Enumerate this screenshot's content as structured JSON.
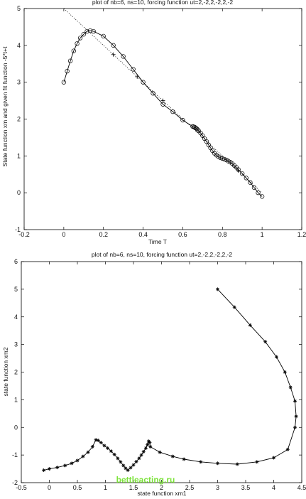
{
  "chart_data": [
    {
      "type": "line",
      "title": "plot of nb=6, ns=10, forcing function ut=2,-2,2,-2,2,-2",
      "xlabel": "Time T",
      "ylabel": "State function xm and given fit function -5*t+t",
      "xlim": [
        -0.2,
        1.2
      ],
      "ylim": [
        -1,
        5
      ],
      "x_ticks": [
        -0.2,
        0,
        0.2,
        0.4,
        0.6,
        0.8,
        1,
        1.2
      ],
      "x_tick_labels": [
        "-0.2",
        "0",
        "0.2",
        "0.4",
        "0.6",
        "0.8",
        "1",
        "1.2"
      ],
      "y_ticks": [
        -1,
        0,
        1,
        2,
        3,
        4,
        5
      ],
      "y_tick_labels": [
        "-1",
        "0",
        "1",
        "2",
        "3",
        "4",
        "5"
      ],
      "grid": false,
      "series": [
        {
          "style": "solid line with circle markers",
          "x": [
            0,
            0.017,
            0.033,
            0.05,
            0.067,
            0.083,
            0.1,
            0.117,
            0.133,
            0.15,
            0.2,
            0.25,
            0.3,
            0.35,
            0.4,
            0.45,
            0.5,
            0.55,
            0.6,
            0.65,
            0.655,
            0.66,
            0.665,
            0.67,
            0.675,
            0.68,
            0.69,
            0.7,
            0.71,
            0.72,
            0.73,
            0.74,
            0.75,
            0.76,
            0.77,
            0.78,
            0.79,
            0.8,
            0.81,
            0.82,
            0.83,
            0.84,
            0.85,
            0.86,
            0.87,
            0.88,
            0.9,
            0.92,
            0.94,
            0.96,
            0.98,
            1.0
          ],
          "y": [
            3.0,
            3.3,
            3.58,
            3.85,
            4.05,
            4.2,
            4.3,
            4.38,
            4.4,
            4.38,
            4.25,
            4.0,
            3.7,
            3.35,
            3.0,
            2.7,
            2.4,
            2.2,
            1.97,
            1.8,
            1.79,
            1.78,
            1.76,
            1.74,
            1.71,
            1.68,
            1.62,
            1.55,
            1.47,
            1.39,
            1.3,
            1.22,
            1.14,
            1.07,
            1.02,
            0.98,
            0.95,
            0.93,
            0.91,
            0.89,
            0.86,
            0.83,
            0.79,
            0.74,
            0.69,
            0.63,
            0.52,
            0.4,
            0.28,
            0.14,
            0.0,
            -0.1
          ]
        },
        {
          "style": "dotted line with plus markers",
          "x": [
            0,
            0.1,
            0.2,
            0.25,
            0.3,
            0.35,
            0.37,
            0.4,
            0.45,
            0.5,
            0.55,
            0.6,
            0.65,
            0.7,
            0.75,
            0.8,
            0.85,
            0.9,
            0.95,
            1.0
          ],
          "y": [
            5.0,
            4.5,
            4.0,
            3.75,
            3.5,
            3.25,
            3.15,
            3.0,
            2.75,
            2.5,
            2.25,
            2.0,
            1.75,
            1.5,
            1.25,
            1.0,
            0.75,
            0.5,
            0.25,
            0.0
          ],
          "plus_x": [
            0.25,
            0.37,
            0.5,
            0.88
          ],
          "plus_y": [
            3.75,
            3.15,
            2.5,
            0.6
          ]
        }
      ]
    },
    {
      "type": "line",
      "title": "plot of nb=6, ns=10, forcing function ut=2,-2,2,-2,2,-2",
      "xlabel": "state function xm1",
      "ylabel": "state function xm2",
      "xlim": [
        -0.5,
        4.5
      ],
      "ylim": [
        -2,
        6
      ],
      "x_ticks": [
        -0.5,
        0,
        0.5,
        1,
        1.5,
        2,
        2.5,
        3,
        3.5,
        4,
        4.5
      ],
      "x_tick_labels": [
        "-0.5",
        "0",
        "0.5",
        "1",
        "1.5",
        "2",
        "2.5",
        "3",
        "3.5",
        "4",
        "4.5"
      ],
      "y_ticks": [
        -2,
        -1,
        0,
        1,
        2,
        3,
        4,
        5,
        6
      ],
      "y_tick_labels": [
        "-2",
        "-1",
        "0",
        "1",
        "2",
        "3",
        "4",
        "5",
        "6"
      ],
      "grid": false,
      "series": [
        {
          "style": "solid line with star markers",
          "x": [
            3.0,
            3.3,
            3.58,
            3.85,
            4.05,
            4.2,
            4.3,
            4.38,
            4.4,
            4.38,
            4.25,
            4.0,
            3.7,
            3.35,
            3.0,
            2.7,
            2.4,
            2.2,
            1.97,
            1.8,
            1.79,
            1.77,
            1.75,
            1.72,
            1.68,
            1.64,
            1.6,
            1.55,
            1.5,
            1.45,
            1.4,
            1.36,
            1.32,
            1.27,
            1.22,
            1.16,
            1.1,
            1.04,
            0.98,
            0.92,
            0.87,
            0.83,
            0.77,
            0.69,
            0.6,
            0.5,
            0.4,
            0.28,
            0.14,
            0.0,
            -0.1
          ],
          "y": [
            5.0,
            4.35,
            3.7,
            3.1,
            2.55,
            2.0,
            1.45,
            0.95,
            0.4,
            0.0,
            -0.8,
            -1.1,
            -1.25,
            -1.33,
            -1.3,
            -1.25,
            -1.15,
            -1.05,
            -0.9,
            -0.7,
            -0.55,
            -0.5,
            -0.62,
            -0.75,
            -0.88,
            -1.0,
            -1.12,
            -1.24,
            -1.36,
            -1.46,
            -1.55,
            -1.48,
            -1.38,
            -1.25,
            -1.12,
            -0.98,
            -0.86,
            -0.75,
            -0.66,
            -0.55,
            -0.47,
            -0.45,
            -0.7,
            -0.9,
            -1.05,
            -1.2,
            -1.3,
            -1.38,
            -1.45,
            -1.5,
            -1.55
          ]
        }
      ]
    }
  ],
  "watermark": "bettleacting.ru"
}
